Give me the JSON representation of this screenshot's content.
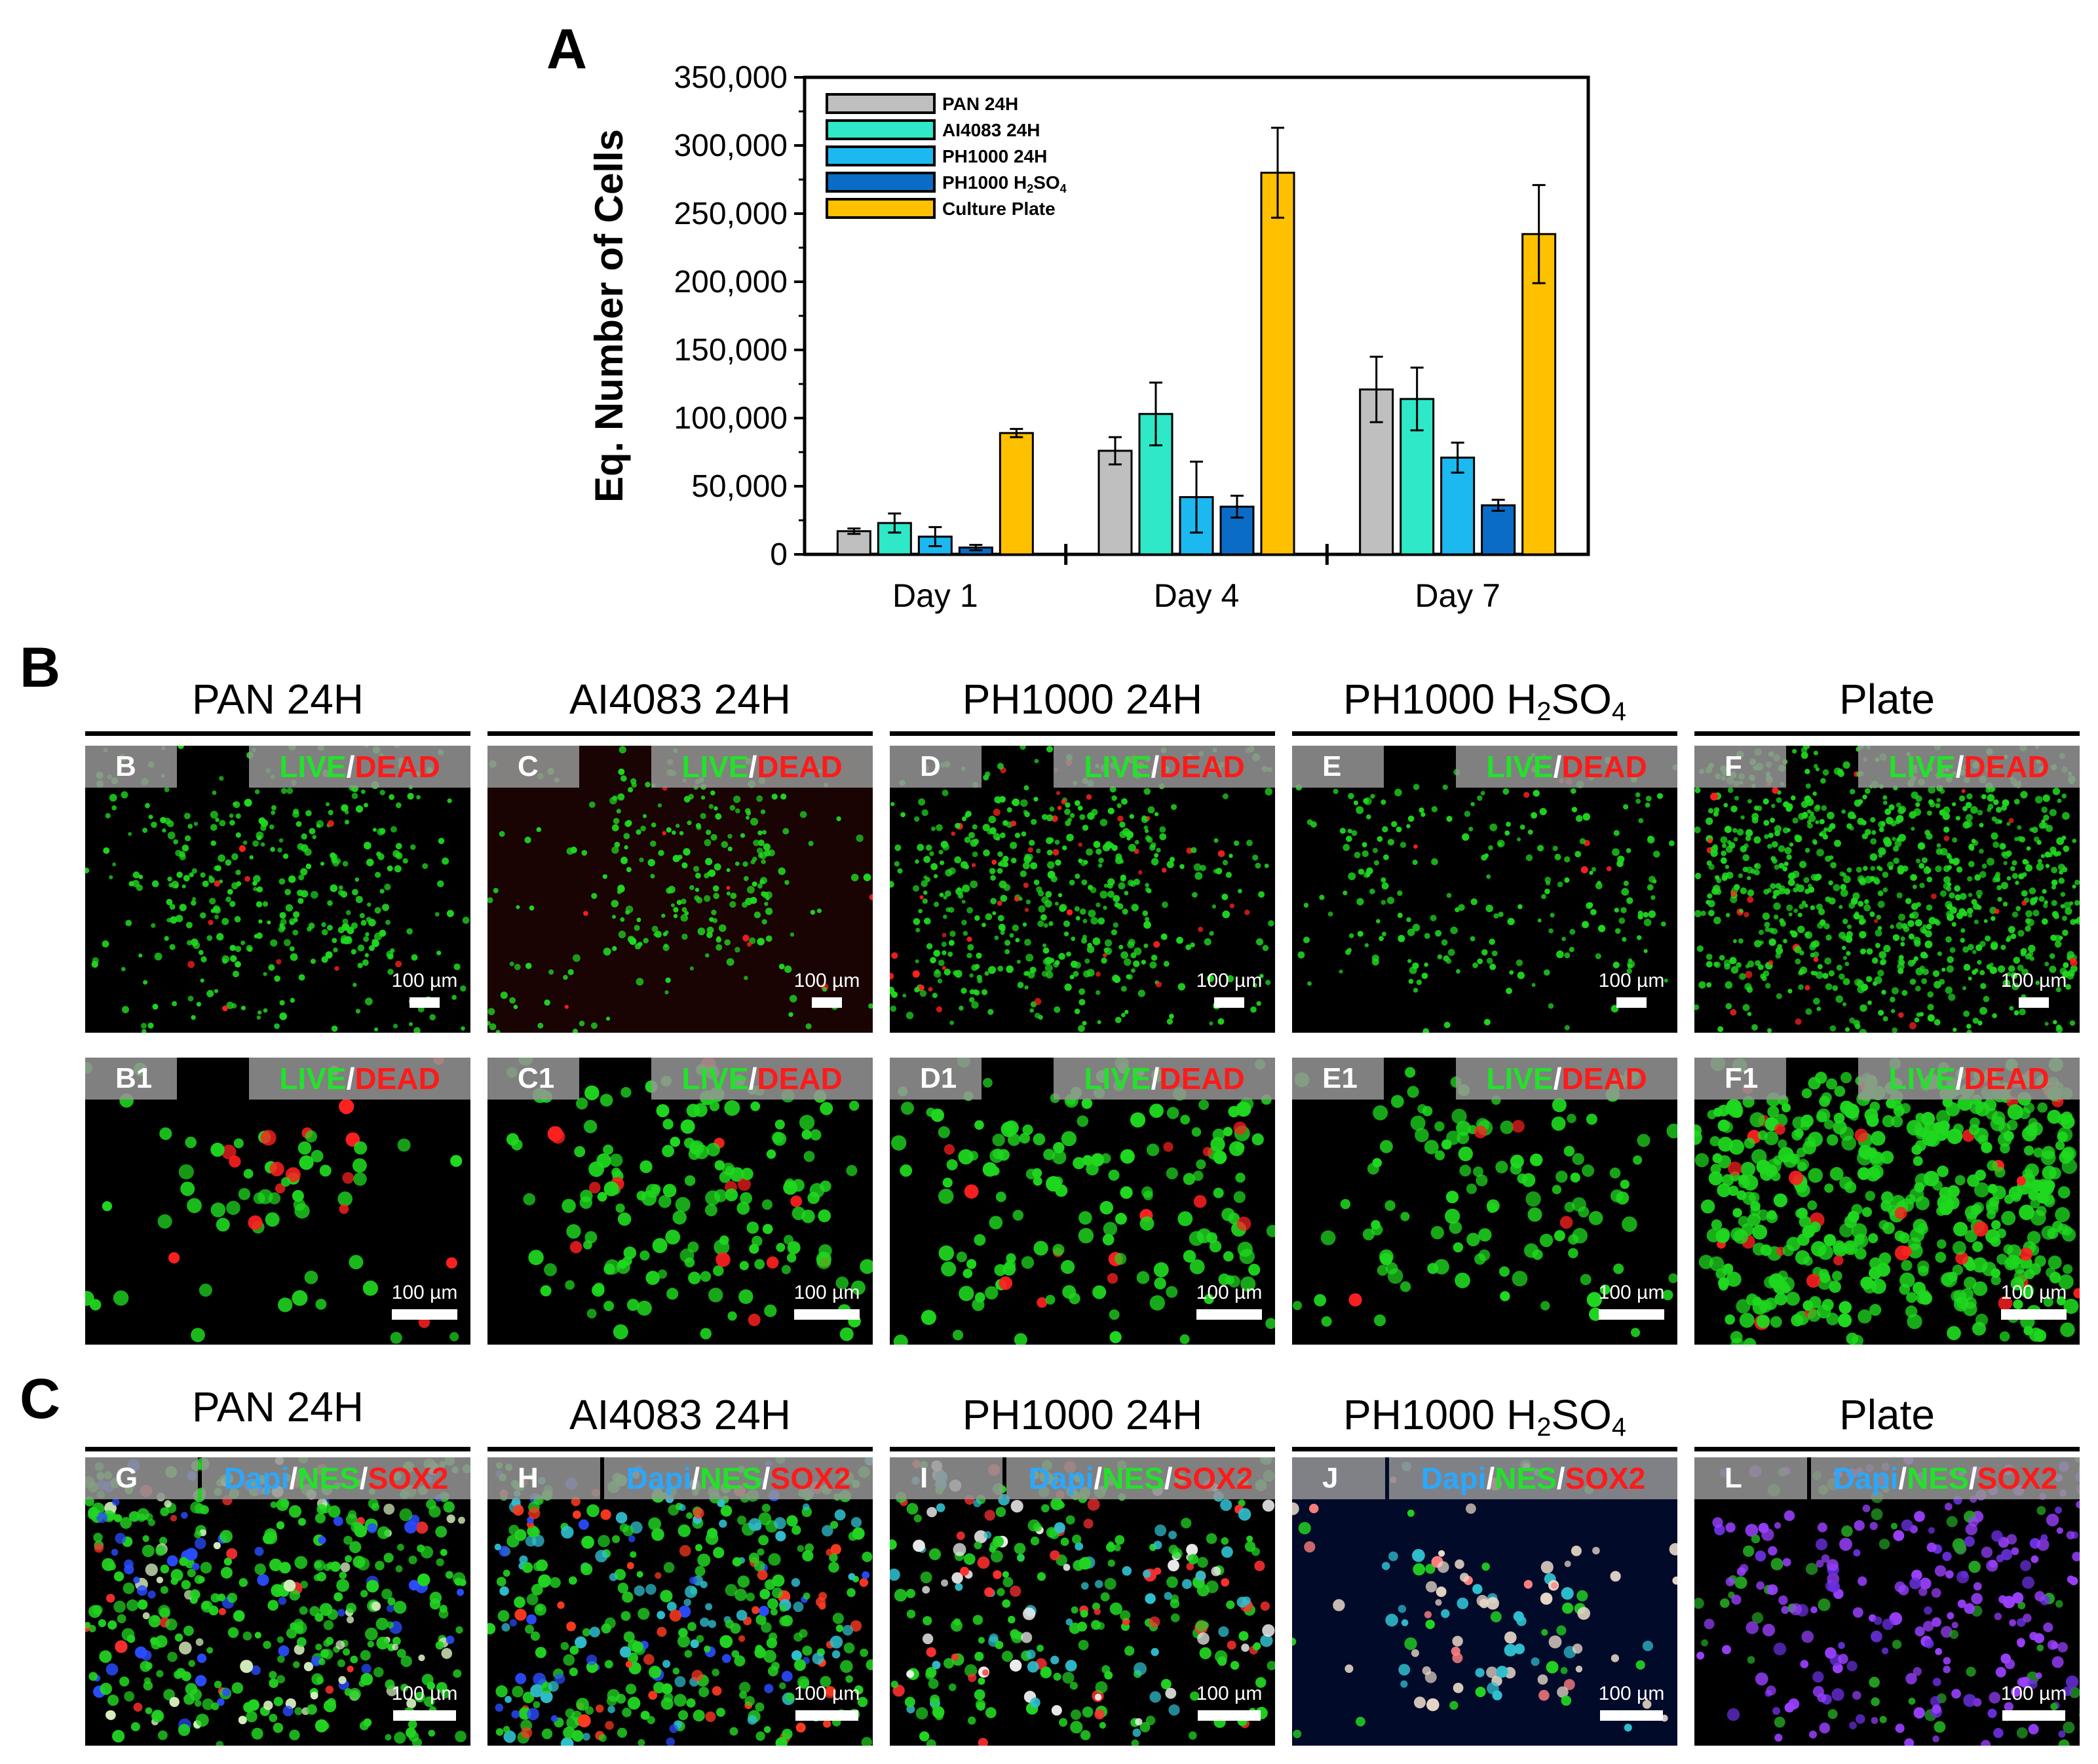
{
  "panel_letters": {
    "a": "A",
    "b": "B",
    "c": "C"
  },
  "chart_data": {
    "type": "bar",
    "ylabel": "Eq. Number of Cells",
    "ylim": [
      0,
      350000
    ],
    "yticks": [
      "0",
      "50,000",
      "100,000",
      "150,000",
      "200,000",
      "250,000",
      "300,000",
      "350,000"
    ],
    "categories": [
      "Day 1",
      "Day 4",
      "Day 7"
    ],
    "legend_position": "top-left",
    "series": [
      {
        "name": "PAN 24H",
        "color": "#bfbfbf",
        "values": [
          17000,
          76000,
          121000
        ],
        "errors": [
          2000,
          10000,
          24000
        ]
      },
      {
        "name": "AI4083 24H",
        "color": "#2ee8c8",
        "values": [
          23000,
          103000,
          114000
        ],
        "errors": [
          7000,
          23000,
          23000
        ]
      },
      {
        "name": "PH1000 24H",
        "color": "#1cb8f0",
        "values": [
          13000,
          42000,
          71000
        ],
        "errors": [
          7000,
          26000,
          11000
        ]
      },
      {
        "name": "PH1000 H₂SO₄",
        "color": "#0a6cc6",
        "values": [
          5000,
          35000,
          36000
        ],
        "errors": [
          2000,
          8000,
          4000
        ]
      },
      {
        "name": "Culture Plate",
        "color": "#ffc000",
        "values": [
          89000,
          280000,
          235000
        ],
        "errors": [
          3000,
          33000,
          36000
        ]
      }
    ]
  },
  "panel_b": {
    "columns": [
      {
        "title": "PAN 24H"
      },
      {
        "title": "AI4083 24H"
      },
      {
        "title": "PH1000 24H"
      },
      {
        "title": "PH1000 H2SO4"
      },
      {
        "title": "Plate"
      }
    ],
    "stain_live": "LIVE",
    "stain_sep": "/",
    "stain_dead": "DEAD",
    "scale_label": "100 µm",
    "row1_tags": [
      "B",
      "C",
      "D",
      "E",
      "F"
    ],
    "row2_tags": [
      "B1",
      "C1",
      "D1",
      "E1",
      "F1"
    ]
  },
  "panel_c": {
    "columns": [
      {
        "title": "PAN 24H"
      },
      {
        "title": "AI4083 24H"
      },
      {
        "title": "PH1000 24H"
      },
      {
        "title": "PH1000 H2SO4"
      },
      {
        "title": "Plate"
      }
    ],
    "stain_dapi": "Dapi",
    "stain_nes": "NES",
    "stain_sox": "SOX2",
    "stain_sep": "/",
    "scale_label": "100 µm",
    "tags": [
      "G",
      "H",
      "I",
      "J",
      "L"
    ]
  },
  "colors": {
    "live": "#22e22a",
    "dead": "#ff1a1a",
    "dapi": "#2aa8ff",
    "tag_bg": "#969696"
  }
}
